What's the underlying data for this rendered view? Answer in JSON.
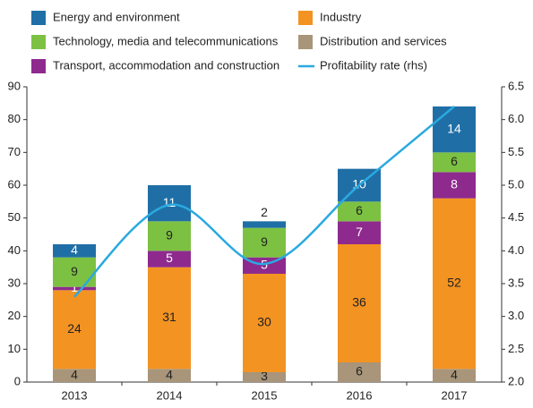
{
  "chart_data": {
    "type": "stacked_bar_line",
    "categories": [
      "2013",
      "2014",
      "2015",
      "2016",
      "2017"
    ],
    "series": [
      {
        "name": "Distribution and services",
        "color": "#a8957a",
        "values": [
          4,
          4,
          3,
          6,
          4
        ]
      },
      {
        "name": "Industry",
        "color": "#f39322",
        "values": [
          24,
          31,
          30,
          36,
          52
        ]
      },
      {
        "name": "Transport, accommodation and construction",
        "color": "#8e2a8e",
        "values": [
          1,
          5,
          5,
          7,
          8
        ]
      },
      {
        "name": "Technology, media and telecommunications",
        "color": "#7dc142",
        "values": [
          9,
          9,
          9,
          6,
          6
        ]
      },
      {
        "name": "Energy and environment",
        "color": "#1f6fa6",
        "values": [
          4,
          11,
          2,
          10,
          14
        ]
      },
      {
        "name": "Profitability rate (rhs)",
        "color": "#2aa9e0",
        "axis": "y2",
        "values": [
          3.3,
          4.7,
          3.8,
          5.0,
          6.2
        ]
      }
    ],
    "ylim": [
      0,
      90
    ],
    "yticks": [
      0,
      10,
      20,
      30,
      40,
      50,
      60,
      70,
      80,
      90
    ],
    "y2lim": [
      2.0,
      6.5
    ],
    "y2ticks": [
      {
        "value": 2.0,
        "label": "2.0"
      },
      2.5,
      {
        "value": 3.0,
        "label": "3.0"
      },
      3.5,
      {
        "value": 4.0,
        "label": "4.0"
      },
      4.5,
      {
        "value": 5.0,
        "label": "5.0"
      },
      5.5,
      {
        "value": 6.0,
        "label": "6.0"
      },
      6.5
    ]
  }
}
